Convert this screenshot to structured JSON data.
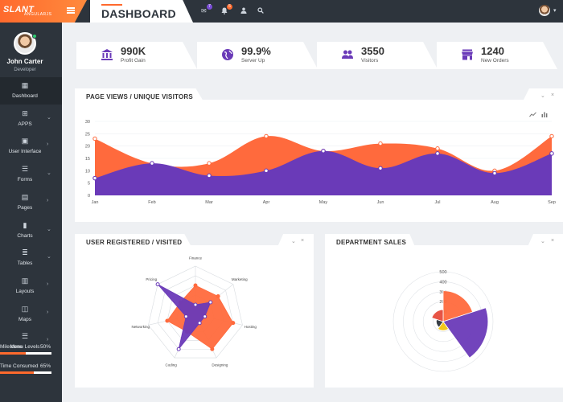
{
  "brand": {
    "name": "SLANT",
    "sub": "ANGULARJS"
  },
  "header": {
    "title": "DASHBOARD",
    "badges": {
      "mail": "7",
      "bell": "5"
    }
  },
  "icons": {
    "menu": "menu-icon",
    "mail": "mail-icon",
    "bell": "bell-icon",
    "user": "user-icon",
    "search": "search-icon"
  },
  "profile": {
    "name": "John Carter",
    "role": "Developer"
  },
  "sidebar": {
    "items": [
      {
        "label": "Dashboard",
        "icon": "dashboard-icon",
        "glyph": "▦",
        "active": true,
        "chevron": false
      },
      {
        "label": "APPS",
        "icon": "apps-icon",
        "glyph": "⊞",
        "chevron": true
      },
      {
        "label": "User Interface",
        "icon": "briefcase-icon",
        "glyph": "▣",
        "chevron": true
      },
      {
        "label": "Forms",
        "icon": "sliders-icon",
        "glyph": "☰",
        "chevron": true
      },
      {
        "label": "Pages",
        "icon": "pages-icon",
        "glyph": "▤",
        "chevron": true
      },
      {
        "label": "Charts",
        "icon": "chart-icon",
        "glyph": "▮",
        "chevron": true
      },
      {
        "label": "Tables",
        "icon": "table-icon",
        "glyph": "≣",
        "chevron": true
      },
      {
        "label": "Layouts",
        "icon": "layout-icon",
        "glyph": "▥",
        "chevron": true
      },
      {
        "label": "Maps",
        "icon": "map-icon",
        "glyph": "◫",
        "chevron": true
      },
      {
        "label": "Menu Levels",
        "icon": "menu-levels-icon",
        "glyph": "☰",
        "chevron": true
      }
    ],
    "progress": [
      {
        "label": "Milestone",
        "value": "50%",
        "fraction": 0.5
      },
      {
        "label": "Time Consumed",
        "value": "65%",
        "fraction": 0.65
      }
    ]
  },
  "stats": [
    {
      "value": "990K",
      "label": "Profit Gain",
      "icon": "bank-icon"
    },
    {
      "value": "99.9%",
      "label": "Server Up",
      "icon": "globe-icon"
    },
    {
      "value": "3550",
      "label": "Visitors",
      "icon": "users-icon"
    },
    {
      "value": "1240",
      "label": "New Orders",
      "icon": "store-icon"
    }
  ],
  "colors": {
    "orange": "#ff6a3d",
    "purple": "#6a3ab8",
    "dark": "#2d343c",
    "red": "#e74c3c",
    "yellow": "#f1c40f"
  },
  "panels": {
    "pageviews": {
      "title": "PAGE VIEWS / UNIQUE VISITORS"
    },
    "registered": {
      "title": "USER REGISTERED / VISITED"
    },
    "department": {
      "title": "DEPARTMENT SALES"
    }
  },
  "chart_data": [
    {
      "type": "area",
      "title": "PAGE VIEWS / UNIQUE VISITORS",
      "categories": [
        "Jan",
        "Feb",
        "Mar",
        "Apr",
        "May",
        "Jun",
        "Jul",
        "Aug",
        "Sep"
      ],
      "yticks": [
        0,
        5,
        10,
        15,
        20,
        25,
        30
      ],
      "ylim": [
        0,
        30
      ],
      "series": [
        {
          "values": [
            23,
            13,
            13,
            24,
            18,
            21,
            19,
            10,
            24
          ]
        },
        {
          "values": [
            7,
            13,
            8,
            10,
            18,
            11,
            17,
            9,
            17
          ]
        }
      ]
    },
    {
      "type": "radar",
      "title": "USER REGISTERED / VISITED",
      "categories": [
        "Finance",
        "Marketing",
        "Hosting",
        "Designing",
        "Coding",
        "Networking",
        "Pricing"
      ],
      "max": 5,
      "series": [
        {
          "values": [
            3,
            3,
            4,
            4,
            2,
            3,
            2
          ]
        },
        {
          "values": [
            1,
            2,
            1,
            1,
            4,
            1,
            5
          ]
        }
      ]
    },
    {
      "type": "polar",
      "title": "DEPARTMENT SALES",
      "ticks": [
        100,
        200,
        300,
        400,
        500
      ],
      "max": 500,
      "slices": [
        {
          "value": 310,
          "color": "#ff6a3d"
        },
        {
          "value": 450,
          "color": "#6a3ab8"
        },
        {
          "value": 90,
          "color": "#f1c40f"
        },
        {
          "value": 70,
          "color": "#2d343c"
        },
        {
          "value": 120,
          "color": "#e74c3c"
        }
      ]
    }
  ]
}
